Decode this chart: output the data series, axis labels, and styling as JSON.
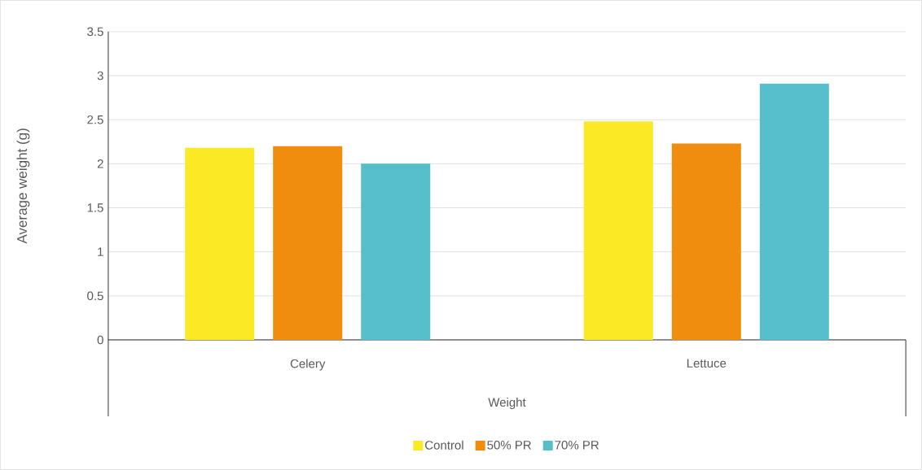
{
  "chart_data": {
    "type": "bar",
    "xlabel": "Weight",
    "ylabel": "Average weight (g)",
    "categories": [
      "Celery",
      "Lettuce"
    ],
    "series": [
      {
        "name": "Control",
        "color": "#fbe925",
        "values": [
          2.18,
          2.48
        ]
      },
      {
        "name": "50% PR",
        "color": "#f08c0e",
        "values": [
          2.2,
          2.23
        ]
      },
      {
        "name": "70% PR",
        "color": "#56bfcb",
        "values": [
          2.0,
          2.91
        ]
      }
    ],
    "ylim": [
      0,
      3.5
    ],
    "yticks": [
      0,
      0.5,
      1,
      1.5,
      2,
      2.5,
      3,
      3.5
    ],
    "grid": "y",
    "legend": "bottom"
  }
}
